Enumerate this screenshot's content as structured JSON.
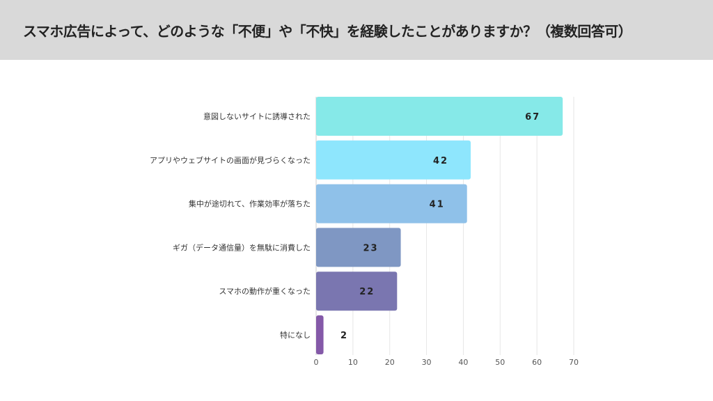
{
  "header": {
    "title": "スマホ広告によって、どのような「不便」や「不快」を経験したことがありますか？（複数回答可）"
  },
  "chart_data": {
    "type": "bar",
    "orientation": "horizontal",
    "title": "スマホ広告によって、どのような「不便」や「不快」を経験したことがありますか？（複数回答可）",
    "categories": [
      "意図しないサイトに誘導された",
      "アプリやウェブサイトの画面が見づらくなった",
      "集中が途切れて、作業効率が落ちた",
      "ギガ（データ通信量）を無駄に消費した",
      "スマホの動作が重くなった",
      "特になし"
    ],
    "values": [
      67,
      42,
      41,
      23,
      22,
      2
    ],
    "colors": [
      "#86e9e8",
      "#8ee6fd",
      "#8fc1e9",
      "#7f97c3",
      "#7a76b0",
      "#8459a8"
    ],
    "xlim": [
      0,
      70
    ],
    "xticks": [
      0,
      10,
      20,
      30,
      40,
      50,
      60,
      70
    ],
    "grid": true,
    "data_labels": true
  }
}
